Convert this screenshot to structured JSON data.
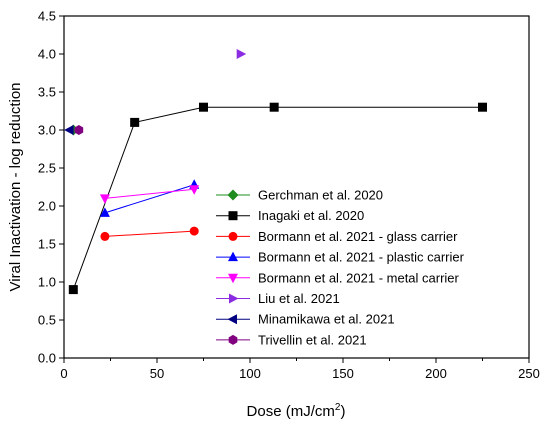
{
  "chart_data": {
    "type": "line",
    "xlabel": "Dose (mJ/cm",
    "xlabel_superscript": "2",
    "xlabel_suffix": ")",
    "ylabel": "Viral Inactivation - log reduction",
    "xlim": [
      0,
      250
    ],
    "ylim": [
      0.0,
      4.5
    ],
    "xticks": [
      "0",
      "50",
      "100",
      "150",
      "200",
      "250"
    ],
    "yticks": [
      "0.0",
      "0.5",
      "1.0",
      "1.5",
      "2.0",
      "2.5",
      "3.0",
      "3.5",
      "4.0",
      "4.5"
    ],
    "grid": false,
    "legend_position": "right",
    "series": [
      {
        "name": "Gerchman et al. 2020",
        "color": "#1e8c1e",
        "marker": "diamond",
        "points": [
          [
            5,
            3.0
          ]
        ]
      },
      {
        "name": "Inagaki et al. 2020",
        "color": "#000000",
        "marker": "square",
        "points": [
          [
            5,
            0.9
          ],
          [
            38,
            3.1
          ],
          [
            75,
            3.3
          ],
          [
            113,
            3.3
          ],
          [
            225,
            3.3
          ]
        ]
      },
      {
        "name": "Bormann et al. 2021 - glass carrier",
        "color": "#ff0000",
        "marker": "circle",
        "points": [
          [
            22,
            1.6
          ],
          [
            70,
            1.67
          ]
        ]
      },
      {
        "name": "Bormann et al. 2021 - plastic carrier",
        "color": "#0000ff",
        "marker": "triangle-up",
        "points": [
          [
            22,
            1.91
          ],
          [
            70,
            2.28
          ]
        ]
      },
      {
        "name": "Bormann et al. 2021 - metal carrier",
        "color": "#ff00ff",
        "marker": "triangle-down",
        "points": [
          [
            22,
            2.1
          ],
          [
            70,
            2.22
          ]
        ]
      },
      {
        "name": "Liu et al. 2021",
        "color": "#8b2be2",
        "marker": "triangle-right",
        "points": [
          [
            95,
            4.0
          ]
        ]
      },
      {
        "name": "Minamikawa et al. 2021",
        "color": "#000080",
        "marker": "triangle-left",
        "points": [
          [
            3,
            3.0
          ]
        ]
      },
      {
        "name": "Trivellin et al. 2021",
        "color": "#800080",
        "marker": "hexagon",
        "points": [
          [
            8,
            3.0
          ]
        ]
      }
    ]
  }
}
